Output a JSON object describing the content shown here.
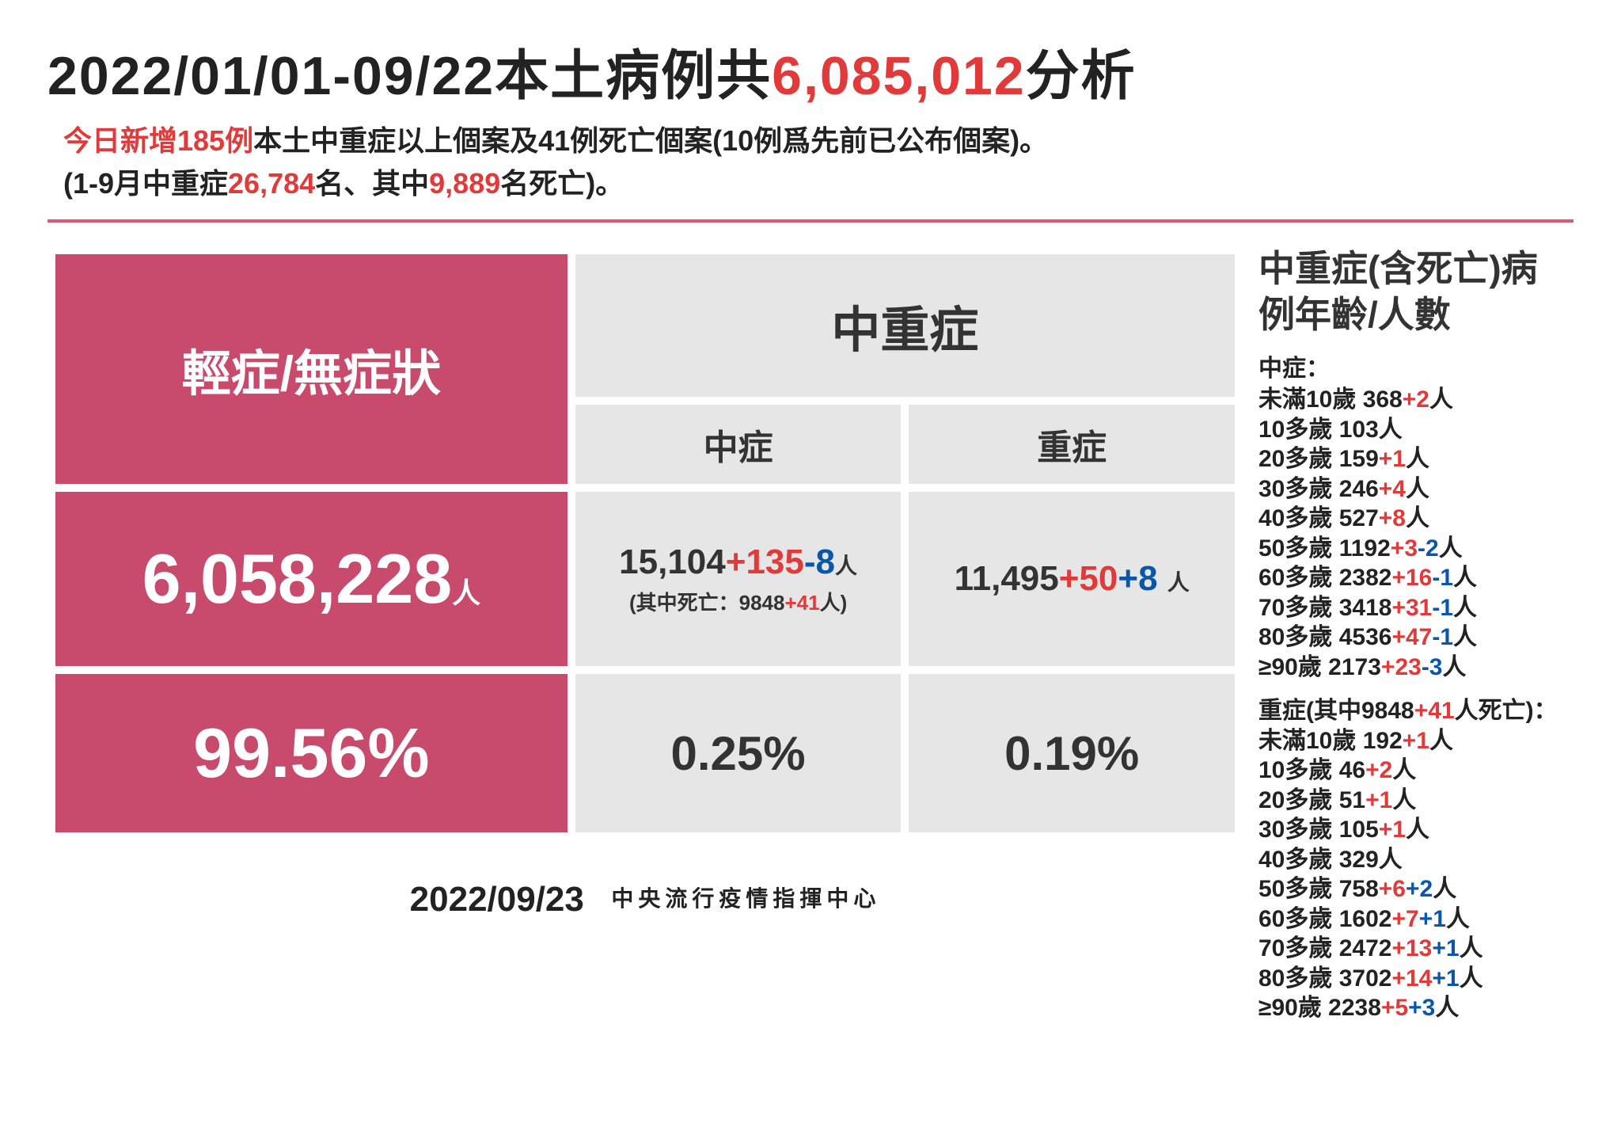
{
  "title": {
    "pre": "2022/01/01-09/22本土病例共",
    "highlight": "6,085,012",
    "post": "分析"
  },
  "subtitle": {
    "l1_red1": "今日新增185例",
    "l1_black1": "本土中重症以上個案及41例死亡個案(10例爲先前已公布個案)。",
    "l2_black1": "(1-9月中重症",
    "l2_red1": "26,784",
    "l2_black2": "名、其中",
    "l2_red2": "9,889",
    "l2_black3": "名死亡)。"
  },
  "table": {
    "mild_header": "輕症/無症狀",
    "severe_header": "中重症",
    "mid_label": "中症",
    "sev_label": "重症",
    "mild_count": "6,058,228",
    "unit": "人",
    "mid": {
      "base": "15,104",
      "plus": "+135",
      "minus": "-8"
    },
    "sev": {
      "base": "11,495",
      "plus": "+50",
      "plus2": "+8"
    },
    "death_note_pre": "(其中死亡：9848",
    "death_note_red": "+41",
    "death_note_post": "人)",
    "mild_pct": "99.56%",
    "mid_pct": "0.25%",
    "sev_pct": "0.19%"
  },
  "right": {
    "title": "中重症(含死亡)病例年齡/人數",
    "mid_label": "中症：",
    "mid_rows": [
      {
        "age": "未滿10歲",
        "base": "368",
        "r": "+2",
        "b": ""
      },
      {
        "age": "10多歲",
        "base": "103",
        "r": "",
        "b": ""
      },
      {
        "age": "20多歲",
        "base": "159",
        "r": "+1",
        "b": ""
      },
      {
        "age": "30多歲",
        "base": "246",
        "r": "+4",
        "b": ""
      },
      {
        "age": "40多歲",
        "base": "527",
        "r": "+8",
        "b": ""
      },
      {
        "age": "50多歲",
        "base": "1192",
        "r": "+3",
        "b": "-2"
      },
      {
        "age": "60多歲",
        "base": "2382",
        "r": "+16",
        "b": "-1"
      },
      {
        "age": "70多歲",
        "base": "3418",
        "r": "+31",
        "b": "-1"
      },
      {
        "age": "80多歲",
        "base": "4536",
        "r": "+47",
        "b": "-1"
      },
      {
        "age": "≥90歲",
        "base": "2173",
        "r": "+23",
        "b": "-3"
      }
    ],
    "sev_label_pre": "重症(其中9848",
    "sev_label_red": "+41",
    "sev_label_post": "人死亡)：",
    "sev_rows": [
      {
        "age": "未滿10歲",
        "base": "192",
        "r": "+1",
        "b": ""
      },
      {
        "age": "10多歲",
        "base": "46",
        "r": "+2",
        "b": ""
      },
      {
        "age": "20多歲",
        "base": "51",
        "r": "+1",
        "b": ""
      },
      {
        "age": "30多歲",
        "base": "105",
        "r": "+1",
        "b": ""
      },
      {
        "age": "40多歲",
        "base": "329",
        "r": "",
        "b": ""
      },
      {
        "age": "50多歲",
        "base": "758",
        "r": "+6",
        "b": "+2"
      },
      {
        "age": "60多歲",
        "base": "1602",
        "r": "+7",
        "b": "+1"
      },
      {
        "age": "70多歲",
        "base": "2472",
        "r": "+13",
        "b": "+1"
      },
      {
        "age": "80多歲",
        "base": "3702",
        "r": "+14",
        "b": "+1"
      },
      {
        "age": "≥90歲",
        "base": "2238",
        "r": "+5",
        "b": "+3"
      }
    ],
    "unit": "人"
  },
  "footer": {
    "date": "2022/09/23",
    "source": "中央流行疫情指揮中心"
  },
  "colors": {
    "pink": "#c84a6d",
    "gray": "#e6e6e6",
    "red": "#e03a3a",
    "blue": "#0a56a8",
    "divider": "#d85a7a"
  }
}
